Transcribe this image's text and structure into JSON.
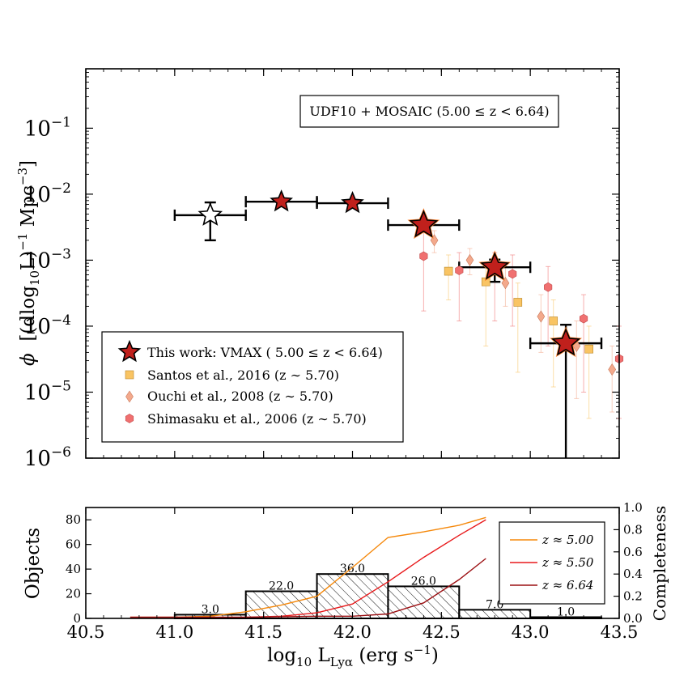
{
  "chart_data": [
    {
      "type": "scatter",
      "panel": "luminosity-function",
      "ylabel_symbol": "ϕ",
      "ylabel_units": "[(dlog",
      "ylabel_sub": "10",
      "ylabel_units2": "L)",
      "ylabel_exp1": "−1",
      "ylabel_units3": " Mpc",
      "ylabel_exp2": "−3",
      "ylabel_close": "]",
      "xlim": [
        40.5,
        43.5
      ],
      "ylog_range": [
        -6,
        -0.1
      ],
      "y_ticks": [
        {
          "base": "10",
          "exp": "−1",
          "v": -1
        },
        {
          "base": "10",
          "exp": "−2",
          "v": -2
        },
        {
          "base": "10",
          "exp": "−3",
          "v": -3
        },
        {
          "base": "10",
          "exp": "−4",
          "v": -4
        },
        {
          "base": "10",
          "exp": "−5",
          "v": -5
        },
        {
          "base": "10",
          "exp": "−6",
          "v": -6
        }
      ],
      "annotation": "UDF10 + MOSAIC (5.00 ≤ z < 6.64)",
      "this_work": [
        {
          "x": 41.2,
          "xerr": 0.2,
          "y": 0.0048,
          "ylo": 0.002,
          "yhi": 0.0075,
          "hollow": true
        },
        {
          "x": 41.6,
          "xerr": 0.2,
          "y": 0.0077,
          "ylo": 0.0077,
          "yhi": 0.0077,
          "hollow": false
        },
        {
          "x": 42.0,
          "xerr": 0.2,
          "y": 0.0073,
          "ylo": 0.0073,
          "yhi": 0.0073,
          "hollow": false
        },
        {
          "x": 42.4,
          "xerr": 0.2,
          "y": 0.0034,
          "ylo": 0.0034,
          "yhi": 0.0034,
          "hollow": false
        },
        {
          "x": 42.8,
          "xerr": 0.2,
          "y": 0.00078,
          "ylo": 0.00047,
          "yhi": 0.00102,
          "hollow": false
        },
        {
          "x": 43.2,
          "xerr": 0.2,
          "y": 5.5e-05,
          "ylo": 1e-06,
          "yhi": 0.000105,
          "hollow": false
        }
      ],
      "santos_2016": [
        {
          "x": 42.54,
          "y": 0.00068,
          "ylo": 0.00025,
          "yhi": 0.0012
        },
        {
          "x": 42.75,
          "y": 0.00047,
          "ylo": 5e-05,
          "yhi": 0.0009
        },
        {
          "x": 42.93,
          "y": 0.00023,
          "ylo": 2e-05,
          "yhi": 0.00045
        },
        {
          "x": 43.13,
          "y": 0.00012,
          "ylo": 1.2e-05,
          "yhi": 0.00025
        },
        {
          "x": 43.33,
          "y": 4.5e-05,
          "ylo": 4e-06,
          "yhi": 0.0001
        }
      ],
      "ouchi_2008": [
        {
          "x": 42.46,
          "y": 0.002,
          "ylo": 0.0013,
          "yhi": 0.0028
        },
        {
          "x": 42.66,
          "y": 0.001,
          "ylo": 0.0006,
          "yhi": 0.0015
        },
        {
          "x": 42.86,
          "y": 0.00045,
          "ylo": 0.0002,
          "yhi": 0.0008
        },
        {
          "x": 43.06,
          "y": 0.00014,
          "ylo": 4e-05,
          "yhi": 0.0003
        },
        {
          "x": 43.26,
          "y": 5e-05,
          "ylo": 8e-06,
          "yhi": 0.00012
        },
        {
          "x": 43.46,
          "y": 2.2e-05,
          "ylo": 5e-06,
          "yhi": 5e-05
        }
      ],
      "shimasaku_2006": [
        {
          "x": 42.4,
          "y": 0.00115,
          "ylo": 0.00017,
          "yhi": 0.0028
        },
        {
          "x": 42.6,
          "y": 0.0007,
          "ylo": 0.00012,
          "yhi": 0.0013
        },
        {
          "x": 42.8,
          "y": 0.0007,
          "ylo": 0.00012,
          "yhi": 0.0013
        },
        {
          "x": 42.9,
          "y": 0.00062,
          "ylo": 0.0001,
          "yhi": 0.0012
        },
        {
          "x": 43.1,
          "y": 0.00039,
          "ylo": 5e-05,
          "yhi": 0.0008
        },
        {
          "x": 43.3,
          "y": 0.00013,
          "ylo": 1e-05,
          "yhi": 0.0003
        },
        {
          "x": 43.5,
          "y": 3.2e-05,
          "ylo": 4e-06,
          "yhi": 0.0001
        }
      ],
      "legend": [
        {
          "key": "this_work",
          "label": "This work: VMAX ( 5.00 ≤ z < 6.64)"
        },
        {
          "key": "santos",
          "label": "Santos et al., 2016 (z ∼ 5.70)"
        },
        {
          "key": "ouchi",
          "label": "Ouchi et al., 2008 (z ∼ 5.70)"
        },
        {
          "key": "shimasaku",
          "label": "Shimasaku et al., 2006 (z ∼ 5.70)"
        }
      ]
    },
    {
      "type": "bar",
      "panel": "histogram-completeness",
      "ylabel_left": "Objects",
      "ylabel_right": "Completeness",
      "xlabel_main": "log",
      "xlabel_sub1": "10",
      "xlabel_L": " L",
      "xlabel_sub2": "Lyα",
      "xlabel_units": " (erg s",
      "xlabel_exp": "−1",
      "xlabel_close": ")",
      "xlim": [
        40.5,
        43.5
      ],
      "ylim_left": [
        0,
        90
      ],
      "ylim_right": [
        0,
        1.0
      ],
      "x_ticks": [
        "40.5",
        "41.0",
        "41.5",
        "42.0",
        "42.5",
        "43.0",
        "43.5"
      ],
      "y_ticks_left": [
        "0",
        "20",
        "40",
        "60",
        "80"
      ],
      "y_ticks_right": [
        "0.0",
        "0.2",
        "0.4",
        "0.6",
        "0.8",
        "1.0"
      ],
      "bins": [
        {
          "x0": 41.0,
          "x1": 41.4,
          "count": 3.0,
          "label": "3.0"
        },
        {
          "x0": 41.4,
          "x1": 41.8,
          "count": 22.0,
          "label": "22.0"
        },
        {
          "x0": 41.8,
          "x1": 42.2,
          "count": 36.0,
          "label": "36.0"
        },
        {
          "x0": 42.2,
          "x1": 42.6,
          "count": 26.0,
          "label": "26.0"
        },
        {
          "x0": 42.6,
          "x1": 43.0,
          "count": 7.0,
          "label": "7.0"
        },
        {
          "x0": 43.0,
          "x1": 43.4,
          "count": 1.0,
          "label": "1.0"
        }
      ],
      "completeness": [
        {
          "name": "z ≈ 5.00",
          "color": "#f5880a",
          "x": [
            40.75,
            41.0,
            41.2,
            41.4,
            41.6,
            41.8,
            42.0,
            42.2,
            42.4,
            42.6,
            42.75
          ],
          "y": [
            0.01,
            0.01,
            0.02,
            0.06,
            0.12,
            0.2,
            0.46,
            0.73,
            0.78,
            0.84,
            0.91
          ]
        },
        {
          "name": "z ≈ 5.50",
          "color": "#e8191b",
          "x": [
            40.75,
            41.0,
            41.4,
            41.6,
            41.8,
            42.0,
            42.2,
            42.4,
            42.6,
            42.75
          ],
          "y": [
            0.01,
            0.01,
            0.01,
            0.02,
            0.05,
            0.13,
            0.33,
            0.55,
            0.75,
            0.89
          ]
        },
        {
          "name": "z ≈ 6.64",
          "color": "#9c1013",
          "x": [
            40.75,
            41.0,
            41.4,
            41.8,
            42.0,
            42.2,
            42.4,
            42.6,
            42.75
          ],
          "y": [
            0.01,
            0.01,
            0.01,
            0.02,
            0.02,
            0.04,
            0.14,
            0.35,
            0.54
          ]
        }
      ]
    }
  ],
  "colors": {
    "star_fill": "#c0201c",
    "star_glow": "#ff7f2a",
    "santos": "#f9c463",
    "ouchi": "#f3a98c",
    "shimasaku": "#f07070"
  }
}
